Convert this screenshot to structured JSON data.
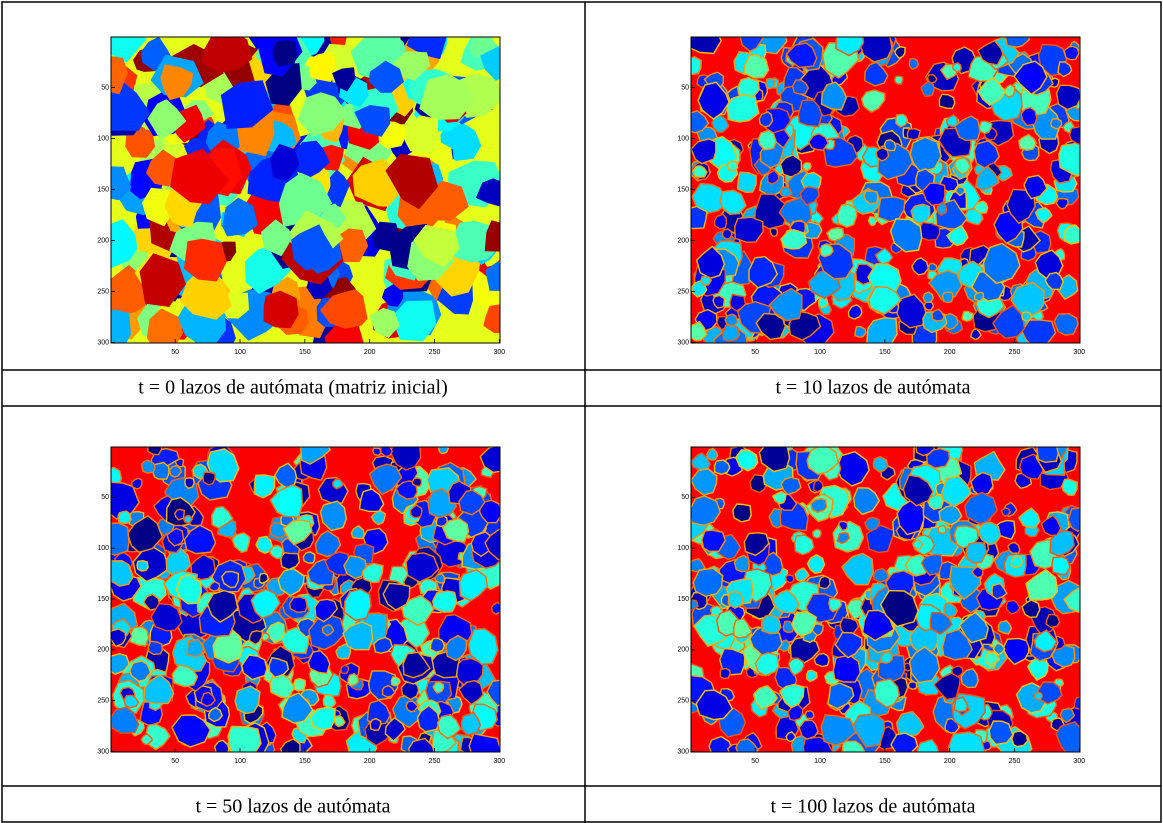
{
  "panels": [
    {
      "caption": "t = 0 lazos de autómata (matriz inicial)",
      "xlim": [
        0.5,
        300.5
      ],
      "ylim": [
        0.5,
        300.5
      ],
      "xticks": [
        50,
        100,
        150,
        200,
        250,
        300
      ],
      "yticks": [
        50,
        100,
        150,
        200,
        250,
        300
      ]
    },
    {
      "caption": "t = 10 lazos de autómata",
      "xlim": [
        0.5,
        300.5
      ],
      "ylim": [
        0.5,
        300.5
      ],
      "xticks": [
        50,
        100,
        150,
        200,
        250,
        300
      ],
      "yticks": [
        50,
        100,
        150,
        200,
        250,
        300
      ]
    },
    {
      "caption": "t = 50 lazos de autómata",
      "xlim": [
        0.5,
        300.5
      ],
      "ylim": [
        0.5,
        300.5
      ],
      "xticks": [
        50,
        100,
        150,
        200,
        250,
        300
      ],
      "yticks": [
        50,
        100,
        150,
        200,
        250,
        300
      ]
    },
    {
      "caption": "t = 100 lazos de autómata",
      "xlim": [
        0.5,
        300.5
      ],
      "ylim": [
        0.5,
        300.5
      ],
      "xticks": [
        50,
        100,
        150,
        200,
        250,
        300
      ],
      "yticks": [
        50,
        100,
        150,
        200,
        250,
        300
      ]
    }
  ]
}
